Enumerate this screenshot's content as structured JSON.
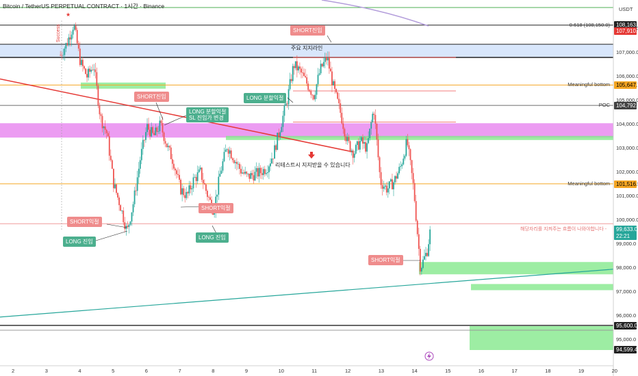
{
  "header": {
    "title": "Bitcoin / TetherUS PERPETUAL CONTRACT · 1시간 · Binance",
    "currency": "USDT"
  },
  "colors": {
    "up": "#26a69a",
    "down": "#ef5350",
    "wick": "#555555",
    "orange": "#f5a623",
    "pink_zone": "#e98bf0",
    "blue_zone": "#c8dcfa",
    "green_zone": "#84e88c"
  },
  "chart_data": {
    "type": "candlestick",
    "ylim": [
      94300,
      108900
    ],
    "x_ticks": [
      "2",
      "3",
      "4",
      "5",
      "6",
      "7",
      "8",
      "9",
      "10",
      "11",
      "12",
      "13",
      "14",
      "15",
      "16",
      "17",
      "18",
      "19",
      "20"
    ],
    "y_ticks": [
      "108,000.0",
      "107,000.0",
      "106,000.0",
      "105,000.0",
      "104,000.0",
      "103,000.0",
      "102,000.0",
      "101,000.0",
      "100,000.0",
      "99,000.0",
      "98,000.0",
      "97,000.0",
      "96,000.0",
      "95,000.0"
    ],
    "close_path": [
      [
        3.4,
        106.9
      ],
      [
        3.6,
        107.4
      ],
      [
        3.8,
        108.2
      ],
      [
        4.0,
        106.6
      ],
      [
        4.2,
        106.0
      ],
      [
        4.4,
        106.5
      ],
      [
        4.6,
        104.3
      ],
      [
        4.8,
        103.6
      ],
      [
        5.0,
        101.5
      ],
      [
        5.2,
        100.6
      ],
      [
        5.4,
        99.5
      ],
      [
        5.6,
        100.8
      ],
      [
        5.8,
        102.6
      ],
      [
        6.0,
        103.9
      ],
      [
        6.2,
        103.5
      ],
      [
        6.4,
        104.0
      ],
      [
        6.6,
        103.1
      ],
      [
        6.8,
        102.4
      ],
      [
        7.0,
        101.3
      ],
      [
        7.2,
        101.0
      ],
      [
        7.4,
        101.7
      ],
      [
        7.6,
        102.0
      ],
      [
        7.8,
        101.1
      ],
      [
        8.0,
        100.4
      ],
      [
        8.2,
        102.0
      ],
      [
        8.4,
        103.1
      ],
      [
        8.6,
        102.6
      ],
      [
        8.8,
        102.1
      ],
      [
        9.0,
        101.8
      ],
      [
        9.2,
        101.9
      ],
      [
        9.4,
        102.0
      ],
      [
        9.6,
        102.2
      ],
      [
        9.8,
        102.8
      ],
      [
        10.0,
        103.9
      ],
      [
        10.2,
        105.0
      ],
      [
        10.4,
        106.5
      ],
      [
        10.6,
        106.2
      ],
      [
        10.8,
        105.7
      ],
      [
        11.0,
        105.2
      ],
      [
        11.2,
        106.3
      ],
      [
        11.4,
        106.8
      ],
      [
        11.6,
        105.5
      ],
      [
        11.8,
        104.5
      ],
      [
        12.0,
        103.3
      ],
      [
        12.2,
        102.8
      ],
      [
        12.4,
        103.3
      ],
      [
        12.6,
        103.0
      ],
      [
        12.8,
        104.7
      ],
      [
        13.0,
        101.6
      ],
      [
        13.2,
        101.3
      ],
      [
        13.4,
        101.6
      ],
      [
        13.6,
        102.2
      ],
      [
        13.8,
        103.3
      ],
      [
        14.0,
        101.3
      ],
      [
        14.2,
        98.0
      ],
      [
        14.4,
        98.7
      ],
      [
        14.5,
        99.6
      ]
    ],
    "levels": [
      {
        "label": "0.618 (108,150.0)",
        "price": 108150,
        "color": "#222222"
      },
      {
        "label": "Meaningful bottom",
        "price": 105647.7,
        "color": "#f5a623"
      },
      {
        "label": "POC",
        "price": 104792.7,
        "color": "#9e9e9e"
      },
      {
        "label": "Meaningful bottom",
        "price": 101516.5,
        "color": "#f5a623"
      }
    ],
    "price_labels": [
      {
        "text": "108,163.6",
        "price": 108163.6,
        "bg": "#222222",
        "fg": "#ffffff"
      },
      {
        "text": "107,910.9",
        "price": 107910.9,
        "bg": "#e53935",
        "fg": "#ffffff"
      },
      {
        "text": "105,647.7",
        "price": 105647.7,
        "bg": "#f5a623",
        "fg": "#000000"
      },
      {
        "text": "104,792.7",
        "price": 104792.7,
        "bg": "#424242",
        "fg": "#ffffff"
      },
      {
        "text": "101,516.5",
        "price": 101516.5,
        "bg": "#f5a623",
        "fg": "#000000"
      },
      {
        "text": "99,633.0",
        "price": 99633.0,
        "bg": "#26a69a",
        "fg": "#ffffff"
      },
      {
        "text": "22:21",
        "price": 99350,
        "bg": "#26a69a",
        "fg": "#ffffff"
      },
      {
        "text": "95,600.0",
        "price": 95600,
        "bg": "#222222",
        "fg": "#ffffff"
      },
      {
        "text": "94,599.4",
        "price": 94599.4,
        "bg": "#222222",
        "fg": "#ffffff"
      }
    ],
    "annotations": [
      {
        "text": "주요 지지라인",
        "kind": "plain"
      },
      {
        "text": "SHORT진입",
        "kind": "short"
      },
      {
        "text": "SHORT진입",
        "kind": "short"
      },
      {
        "text": "LONG 분할익절",
        "kind": "long"
      },
      {
        "text": "LONG 분할익절\nSL 진입가 변경",
        "kind": "long"
      },
      {
        "text": "SHORT익절",
        "kind": "short"
      },
      {
        "text": "LONG 진입",
        "kind": "long"
      },
      {
        "text": "SHORT익절",
        "kind": "short"
      },
      {
        "text": "LONG 진입",
        "kind": "long"
      },
      {
        "text": "리테스트시 지지받을 수 있습니다",
        "kind": "plain"
      },
      {
        "text": "SHORT익절",
        "kind": "short"
      },
      {
        "text": "해당자리를 지켜주는 흐름이 나와야합니다 -",
        "kind": "plain"
      },
      {
        "text": "Success",
        "kind": "plain"
      }
    ]
  }
}
